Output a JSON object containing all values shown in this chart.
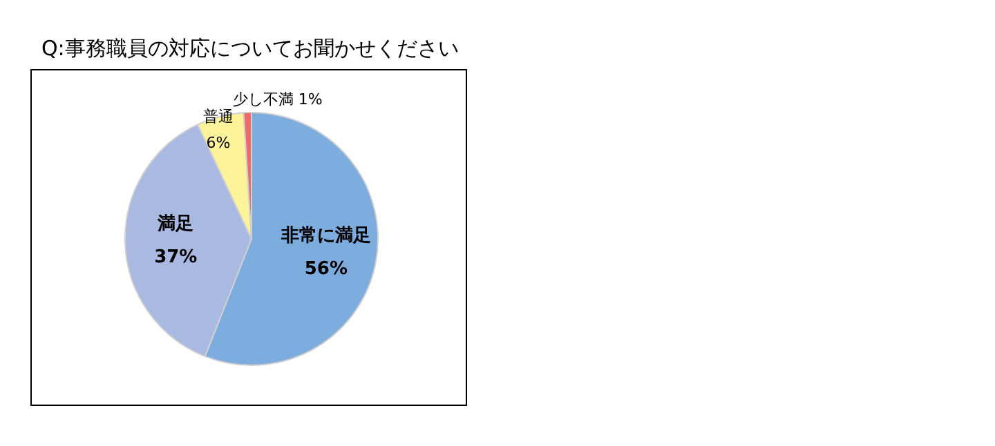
{
  "chart_data": {
    "type": "pie",
    "title": "Q:事務職員の対応についてお聞かせください",
    "categories": [
      "非常に満足",
      "満足",
      "普通",
      "少し不満"
    ],
    "values": [
      56,
      37,
      6,
      1
    ],
    "colors": [
      "#7dadde",
      "#a9b9e1",
      "#fdf39a",
      "#ee6a6a"
    ],
    "value_labels": [
      "56%",
      "37%",
      "6%",
      "1%"
    ],
    "legend": false
  }
}
